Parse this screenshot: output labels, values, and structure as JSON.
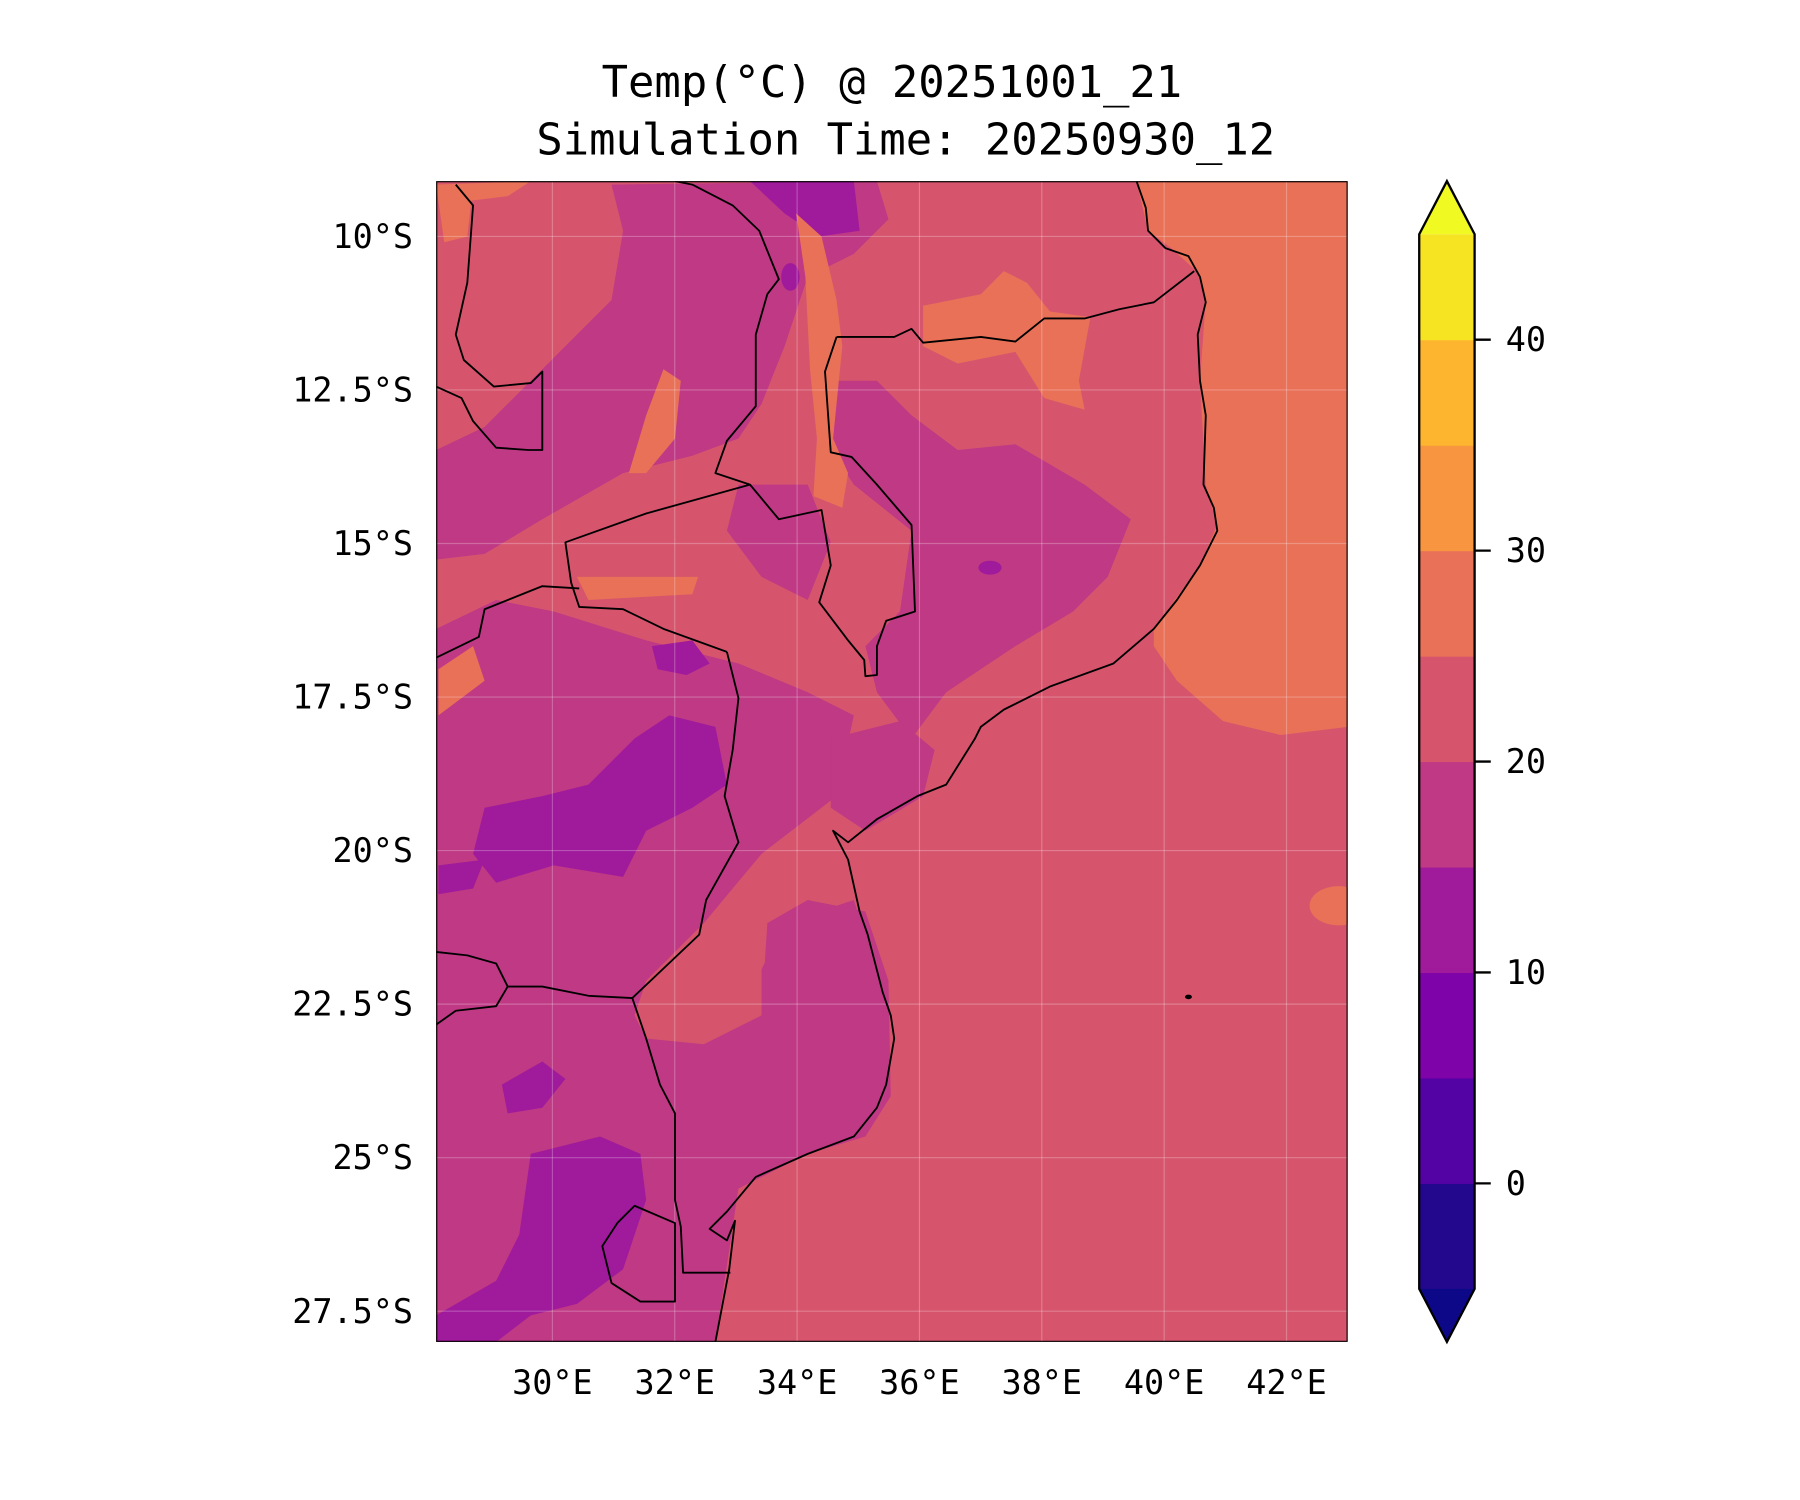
{
  "title_line1": "Temp(°C) @ 20251001_21",
  "title_line2": "Simulation Time: 20250930_12",
  "chart_data": {
    "type": "heatmap",
    "subtype": "filled-contour map",
    "variable": "Temperature (°C)",
    "valid_time": "20251001_21",
    "simulation_time": "20250930_12",
    "extent": {
      "lon": [
        28.1,
        43.0
      ],
      "lat": [
        -28.0,
        -9.1
      ]
    },
    "grid": true,
    "x_ticks": [
      {
        "value": 30,
        "label": "30°E"
      },
      {
        "value": 32,
        "label": "32°E"
      },
      {
        "value": 34,
        "label": "34°E"
      },
      {
        "value": 36,
        "label": "36°E"
      },
      {
        "value": 38,
        "label": "38°E"
      },
      {
        "value": 40,
        "label": "40°E"
      },
      {
        "value": 42,
        "label": "42°E"
      }
    ],
    "y_ticks": [
      {
        "value": -10,
        "label": "10°S"
      },
      {
        "value": -12.5,
        "label": "12.5°S"
      },
      {
        "value": -15,
        "label": "15°S"
      },
      {
        "value": -17.5,
        "label": "17.5°S"
      },
      {
        "value": -20,
        "label": "20°S"
      },
      {
        "value": -22.5,
        "label": "22.5°S"
      },
      {
        "value": -25,
        "label": "25°S"
      },
      {
        "value": -27.5,
        "label": "27.5°S"
      }
    ],
    "colorbar": {
      "levels": [
        -5,
        0,
        5,
        10,
        15,
        20,
        25,
        30,
        35,
        40,
        45
      ],
      "colors": [
        "#23088e",
        "#5302a3",
        "#7e03a8",
        "#a01a9c",
        "#bf3984",
        "#d6556d",
        "#e97158",
        "#f89540",
        "#fdb42f",
        "#f6e423"
      ],
      "under_color": "#0d0887",
      "over_color": "#f0f921",
      "extend": "both",
      "ticks": [
        {
          "value": 0,
          "label": "0"
        },
        {
          "value": 10,
          "label": "10"
        },
        {
          "value": 20,
          "label": "20"
        },
        {
          "value": 30,
          "label": "30"
        },
        {
          "value": 40,
          "label": "40"
        }
      ],
      "placement": "right"
    },
    "summary": {
      "ocean_south": "20-25",
      "ocean_northeast": "25-30",
      "inland_high_ground": "10-20",
      "lake_malawi_valley": "25-30"
    }
  }
}
